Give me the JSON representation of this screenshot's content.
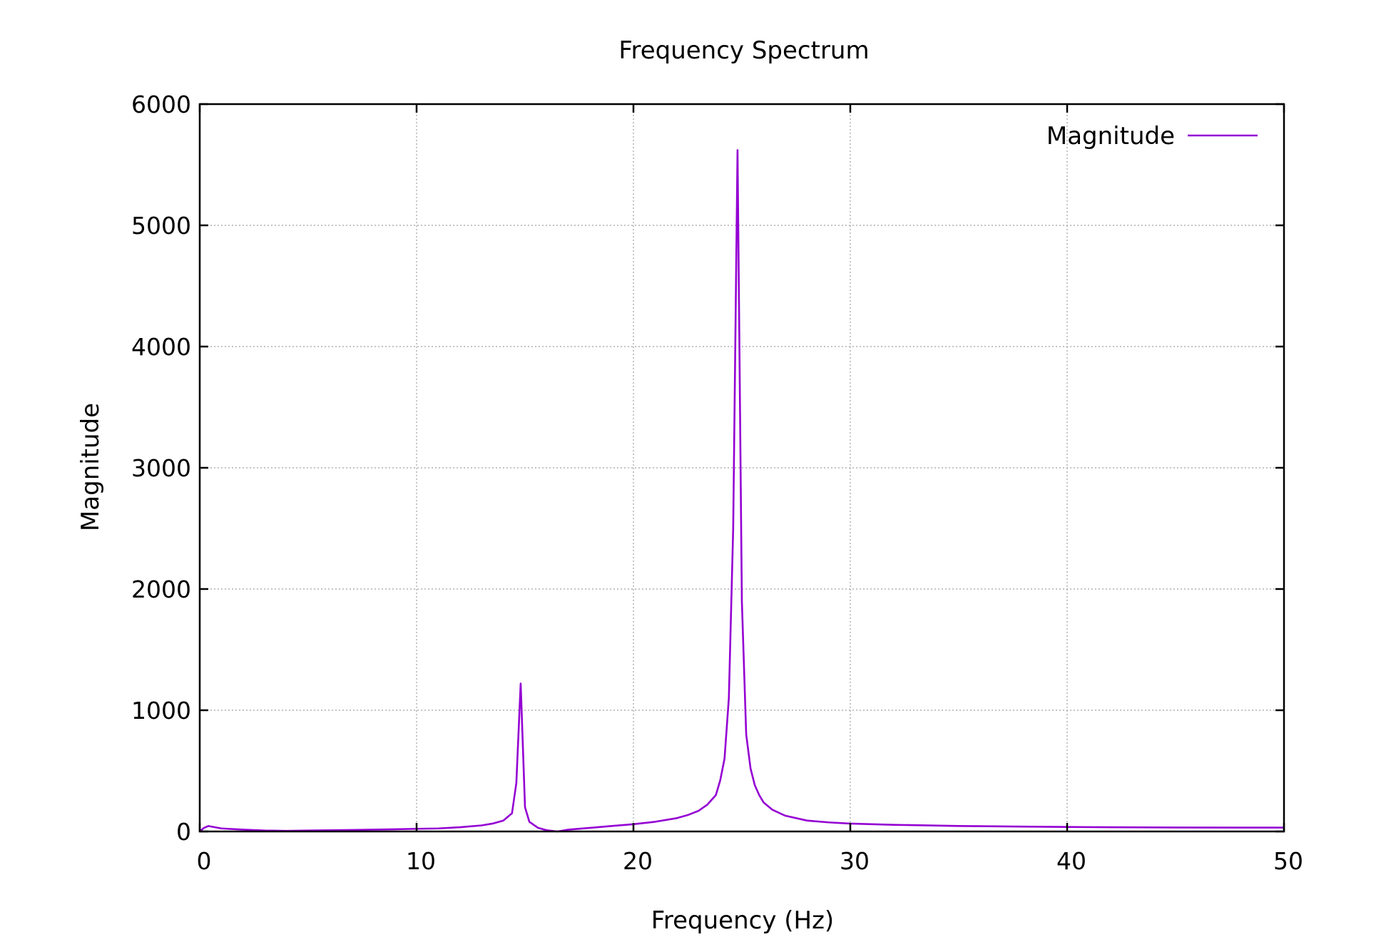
{
  "chart_data": {
    "type": "line",
    "title": "Frequency Spectrum",
    "xlabel": "Frequency (Hz)",
    "ylabel": "Magnitude",
    "xlim": [
      0,
      50
    ],
    "ylim": [
      0,
      6000
    ],
    "xticks": [
      0,
      10,
      20,
      30,
      40,
      50
    ],
    "yticks": [
      0,
      1000,
      2000,
      3000,
      4000,
      5000,
      6000
    ],
    "xtick_labels": [
      "0",
      "10",
      "20",
      "30",
      "40",
      "50"
    ],
    "ytick_labels": [
      "0",
      "1000",
      "2000",
      "3000",
      "4000",
      "5000",
      "6000"
    ],
    "grid": true,
    "legend_position": "top-right",
    "series": [
      {
        "name": "Magnitude",
        "color": "#9400d3",
        "x": [
          0,
          0.2,
          0.4,
          1,
          2,
          3,
          4,
          5,
          6,
          7,
          8,
          9,
          10,
          11,
          12,
          13,
          13.5,
          14,
          14.4,
          14.6,
          14.8,
          15.0,
          15.2,
          15.6,
          16.0,
          16.5,
          17,
          18,
          19,
          20,
          21,
          22,
          22.5,
          23,
          23.4,
          23.8,
          24.0,
          24.2,
          24.4,
          24.6,
          24.8,
          25.0,
          25.2,
          25.4,
          25.6,
          25.8,
          26.0,
          26.4,
          27,
          28,
          29,
          30,
          32,
          35,
          38,
          40,
          42,
          45,
          48,
          50
        ],
        "y": [
          0,
          30,
          45,
          25,
          15,
          8,
          5,
          8,
          10,
          12,
          15,
          18,
          22,
          25,
          35,
          50,
          65,
          90,
          150,
          400,
          1220,
          200,
          80,
          30,
          10,
          0,
          15,
          30,
          45,
          60,
          80,
          110,
          135,
          170,
          220,
          300,
          420,
          600,
          1100,
          2500,
          5620,
          1900,
          800,
          520,
          380,
          300,
          240,
          180,
          130,
          90,
          75,
          65,
          55,
          45,
          40,
          37,
          35,
          33,
          32,
          32
        ]
      }
    ]
  }
}
